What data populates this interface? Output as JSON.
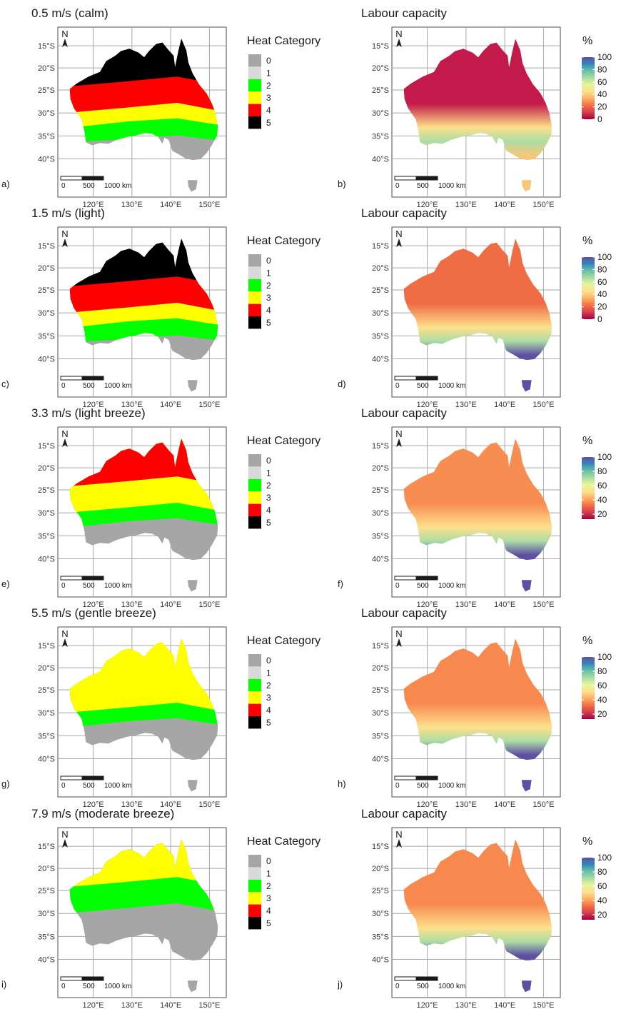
{
  "figure": {
    "latitude_ticks": [
      "15°S",
      "20°S",
      "25°S",
      "30°S",
      "35°S",
      "40°S"
    ],
    "longitude_ticks": [
      "120°E",
      "130°E",
      "140°E",
      "150°E"
    ],
    "north_arrow_label": "N",
    "scale_bar_labels": [
      "0",
      "500",
      "1000 km"
    ],
    "heat_legend": {
      "title": "Heat Category",
      "categories": [
        {
          "label": "0",
          "color": "#a6a6a6"
        },
        {
          "label": "1",
          "color": "#d9d9d9"
        },
        {
          "label": "2",
          "color": "#00ff00"
        },
        {
          "label": "3",
          "color": "#ffff00"
        },
        {
          "label": "4",
          "color": "#ff0000"
        },
        {
          "label": "5",
          "color": "#000000"
        }
      ]
    },
    "labour_legend": {
      "title": "%",
      "colors": [
        "#5e4fa2",
        "#3288bd",
        "#66c2a5",
        "#abdda4",
        "#e6f598",
        "#fee08b",
        "#fdae61",
        "#f46d43",
        "#d53e4f",
        "#9e0142"
      ]
    },
    "rows": [
      {
        "title": "0.5 m/s (calm)",
        "left_label": "a)",
        "right_title": "Labour capacity",
        "right_label": "b)",
        "colorbar_ticks": [
          "100",
          "80",
          "60",
          "40",
          "20",
          "0"
        ],
        "colorbar_min": 0,
        "land_color": "#c21a4a",
        "south_color": "#f6c779",
        "heat_zones": [
          "#a6a6a6",
          "#00ff00",
          "#ffff00",
          "#ff0000",
          "#000000"
        ]
      },
      {
        "title": "1.5 m/s (light)",
        "left_label": "c)",
        "right_title": "Labour capacity",
        "right_label": "d)",
        "colorbar_ticks": [
          "100",
          "80",
          "60",
          "40",
          "20",
          "0"
        ],
        "colorbar_min": 0,
        "land_color": "#ef6c45",
        "south_color": "#5e4fa2",
        "heat_zones": [
          "#a6a6a6",
          "#00ff00",
          "#ffff00",
          "#ff0000",
          "#000000"
        ]
      },
      {
        "title": "3.3 m/s (light breeze)",
        "left_label": "e)",
        "right_title": "Labour capacity",
        "right_label": "f)",
        "colorbar_ticks": [
          "100",
          "80",
          "60",
          "40",
          "20"
        ],
        "colorbar_min": 13,
        "land_color": "#f88d52",
        "south_color": "#5e4fa2",
        "heat_zones": [
          "#a6a6a6",
          "#a6a6a6",
          "#00ff00",
          "#ffff00",
          "#ff0000"
        ]
      },
      {
        "title": "5.5 m/s (gentle breeze)",
        "left_label": "g)",
        "right_title": "Labour capacity",
        "right_label": "h)",
        "colorbar_ticks": [
          "100",
          "80",
          "60",
          "40",
          "20"
        ],
        "colorbar_min": 13,
        "land_color": "#f7894f",
        "south_color": "#5e4fa2",
        "heat_zones": [
          "#a6a6a6",
          "#a6a6a6",
          "#00ff00",
          "#ffff00",
          "#ffff00"
        ]
      },
      {
        "title": "7.9 m/s (moderate breeze)",
        "left_label": "i)",
        "right_title": "Labour capacity",
        "right_label": "j)",
        "colorbar_ticks": [
          "100",
          "80",
          "60",
          "40",
          "20"
        ],
        "colorbar_min": 13,
        "land_color": "#f7894f",
        "south_color": "#5e4fa2",
        "heat_zones": [
          "#a6a6a6",
          "#a6a6a6",
          "#a6a6a6",
          "#00ff00",
          "#ffff00"
        ]
      }
    ]
  }
}
